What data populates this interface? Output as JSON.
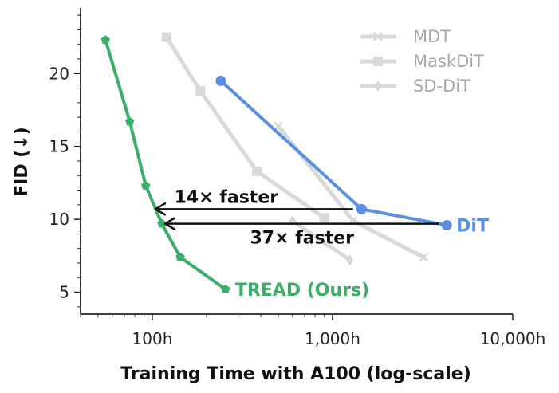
{
  "chart_data": {
    "type": "line",
    "xlabel": "Training Time with A100 (log-scale)",
    "ylabel": "FID (↓)",
    "xscale": "log",
    "xlim": [
      40,
      10000
    ],
    "ylim": [
      3.5,
      24.5
    ],
    "xticks": [
      {
        "value": 100,
        "label": "100h"
      },
      {
        "value": 1000,
        "label": "1,000h"
      },
      {
        "value": 10000,
        "label": "10,000h"
      }
    ],
    "yticks": [
      {
        "value": 5,
        "label": "5"
      },
      {
        "value": 10,
        "label": "10"
      },
      {
        "value": 15,
        "label": "15"
      },
      {
        "value": 20,
        "label": "20"
      }
    ],
    "grid": false,
    "legend_position": "top-right",
    "series": [
      {
        "name": "MDT",
        "color": "#d9d9d9",
        "marker": "x",
        "in_legend": true,
        "label_on_chart": false,
        "x": [
          500,
          1300,
          3200
        ],
        "y": [
          16.4,
          9.9,
          7.4
        ]
      },
      {
        "name": "MaskDiT",
        "color": "#d9d9d9",
        "marker": "square",
        "in_legend": true,
        "label_on_chart": false,
        "x": [
          120,
          185,
          380,
          900
        ],
        "y": [
          22.5,
          18.8,
          13.3,
          10.1
        ]
      },
      {
        "name": "SD-DiT",
        "color": "#d9d9d9",
        "marker": "diamond",
        "in_legend": true,
        "label_on_chart": false,
        "x": [
          600,
          1250
        ],
        "y": [
          9.9,
          7.2
        ]
      },
      {
        "name": "DiT",
        "color": "#5b8fdf",
        "marker": "circle",
        "in_legend": false,
        "label_on_chart": true,
        "x": [
          240,
          1450,
          4300
        ],
        "y": [
          19.5,
          10.7,
          9.6
        ]
      },
      {
        "name": "TREAD (Ours)",
        "color": "#3dae6a",
        "marker": "pentagon",
        "in_legend": false,
        "label_on_chart": true,
        "x": [
          55,
          75,
          92,
          113,
          143,
          255
        ],
        "y": [
          22.3,
          16.7,
          12.3,
          9.7,
          7.4,
          5.2
        ]
      }
    ],
    "annotations": [
      {
        "text": "14× faster",
        "arrow_from": {
          "x": 1300,
          "y": 10.7
        },
        "arrow_to": {
          "x": 100,
          "y": 10.7
        }
      },
      {
        "text": "37× faster",
        "arrow_from": {
          "x": 3900,
          "y": 9.7
        },
        "arrow_to": {
          "x": 113,
          "y": 9.7
        }
      }
    ]
  }
}
